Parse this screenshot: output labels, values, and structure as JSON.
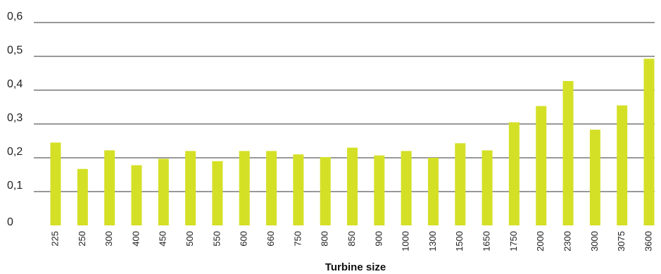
{
  "chart_data": {
    "type": "bar",
    "title": "",
    "xlabel": "Turbine size",
    "ylabel": "",
    "ylim": [
      0,
      0.6
    ],
    "yticks": [
      {
        "value": 0,
        "label": "0"
      },
      {
        "value": 0.1,
        "label": "0,1"
      },
      {
        "value": 0.2,
        "label": "0,2"
      },
      {
        "value": 0.3,
        "label": "0,3"
      },
      {
        "value": 0.4,
        "label": "0,4"
      },
      {
        "value": 0.5,
        "label": "0,5"
      },
      {
        "value": 0.6,
        "label": "0,6"
      }
    ],
    "categories": [
      "225",
      "250",
      "300",
      "400",
      "450",
      "500",
      "550",
      "600",
      "660",
      "750",
      "800",
      "850",
      "900",
      "1000",
      "1300",
      "1500",
      "1650",
      "1750",
      "2000",
      "2300",
      "3000",
      "3075",
      "3600"
    ],
    "values": [
      0.245,
      0.167,
      0.222,
      0.178,
      0.197,
      0.22,
      0.19,
      0.22,
      0.22,
      0.21,
      0.202,
      0.23,
      0.207,
      0.22,
      0.2,
      0.243,
      0.222,
      0.305,
      0.353,
      0.427,
      0.283,
      0.355,
      0.493
    ],
    "bar_color": "#d4e026",
    "grid": true,
    "legend": "none"
  }
}
